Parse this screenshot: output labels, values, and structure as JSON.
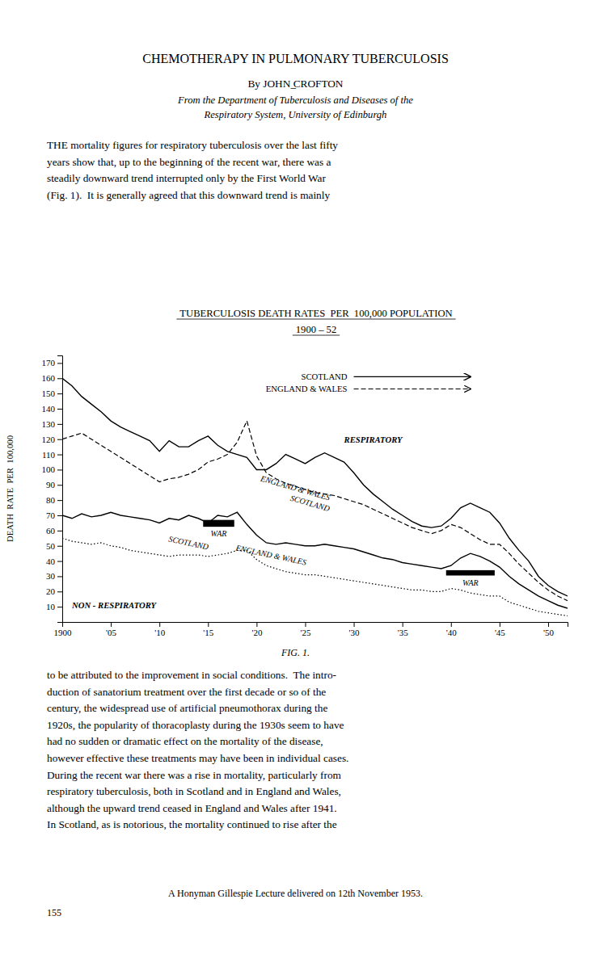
{
  "page_title": "CHEMOTHERAPY  IN  PULMONARY  TUBERCULOSIS",
  "author_line": "By JOHN ̲CROFTON",
  "affiliation": [
    "From the Department of Tuberculosis and Diseases of the",
    "Respiratory System, University of Edinburgh"
  ],
  "body_above": [
    "THE mortality figures for respiratory tuberculosis over the last fifty",
    "years show that, up to the beginning of the recent war, there was a",
    "steadily downward trend interrupted only by the First World War",
    "(Fig. 1).  It is generally agreed that this downward trend is mainly"
  ],
  "body_below": [
    "to be attributed to the improvement in social conditions.  The intro-",
    "duction of sanatorium treatment over the first decade or so of the",
    "century, the widespread use of artificial pneumothorax during the",
    "1920s, the popularity of thoracoplasty during the 1930s seem to have",
    "had no sudden or dramatic effect on the mortality of the disease,",
    "however effective these treatments may have been in individual cases.",
    "During the recent war there was a rise in mortality, particularly from",
    "respiratory tuberculosis, both in Scotland and in England and Wales,",
    "although the upward trend ceased in England and Wales after 1941.",
    "In Scotland, as is notorious, the mortality continued to rise after the"
  ],
  "footnotes": [
    "A Honyman Gillespie Lecture delivered on 12th November 1953.",
    "155"
  ],
  "chart_data": {
    "type": "line",
    "title": "TUBERCULOSIS DEATH RATES  PER  100,000 POPULATION",
    "subtitle": "1900 – 52",
    "y_label": "DEATH  RATE  PER  100,000",
    "caption": "FIG. 1.",
    "annotations": [
      "WAR",
      "WAR",
      "RESPIRATORY",
      "NON - RESPIRATORY"
    ],
    "x": [
      1900,
      1901,
      1902,
      1903,
      1904,
      1905,
      1906,
      1907,
      1908,
      1909,
      1910,
      1911,
      1912,
      1913,
      1914,
      1915,
      1916,
      1917,
      1918,
      1919,
      1920,
      1921,
      1922,
      1923,
      1924,
      1925,
      1926,
      1927,
      1928,
      1929,
      1930,
      1931,
      1932,
      1933,
      1934,
      1935,
      1936,
      1937,
      1938,
      1939,
      1940,
      1941,
      1942,
      1943,
      1944,
      1945,
      1946,
      1947,
      1948,
      1949,
      1950,
      1951,
      1952
    ],
    "series": [
      {
        "name": "SCOTLAND",
        "color": "#000000",
        "line_style": "solid",
        "values": [
          160,
          155,
          148,
          143,
          138,
          132,
          128,
          125,
          122,
          119,
          112,
          119,
          115,
          115,
          119,
          122,
          116,
          112,
          110,
          108,
          100,
          100,
          104,
          110,
          107,
          104,
          108,
          111,
          108,
          105,
          98,
          90,
          84,
          79,
          74,
          70,
          66,
          63,
          62,
          63,
          68,
          75,
          78,
          75,
          72,
          65,
          55,
          47,
          40,
          30,
          24,
          20,
          17
        ]
      },
      {
        "name": "ENGLAND & WALES",
        "color": "#000000",
        "line_style": "dashed",
        "values": [
          120,
          122,
          124,
          120,
          116,
          112,
          108,
          104,
          100,
          96,
          92,
          94,
          95,
          97,
          100,
          105,
          107,
          110,
          118,
          132,
          109,
          98,
          94,
          91,
          89,
          87,
          85,
          84,
          83,
          81,
          79,
          77,
          74,
          71,
          68,
          65,
          62,
          60,
          58,
          60,
          64,
          62,
          58,
          54,
          51,
          51,
          45,
          38,
          32,
          26,
          21,
          17,
          14
        ]
      },
      {
        "name": "SCOTLAND",
        "color": "#000000",
        "line_style": "solid",
        "values": [
          70,
          68,
          71,
          69,
          70,
          72,
          70,
          69,
          68,
          67,
          65,
          68,
          67,
          70,
          68,
          65,
          70,
          69,
          72,
          64,
          57,
          52,
          51,
          52,
          51,
          50,
          50,
          51,
          50,
          49,
          48,
          46,
          44,
          42,
          41,
          39,
          38,
          37,
          36,
          35,
          37,
          42,
          45,
          43,
          40,
          36,
          30,
          25,
          21,
          17,
          14,
          11,
          9
        ]
      },
      {
        "name": "ENGLAND & WALES",
        "color": "#000000",
        "line_style": "dotted",
        "values": [
          55,
          53,
          52,
          51,
          52,
          50,
          49,
          47,
          46,
          45,
          44,
          43,
          44,
          44,
          44,
          43,
          44,
          45,
          47,
          47,
          41,
          37,
          35,
          33,
          32,
          31,
          31,
          30,
          29,
          28,
          27,
          26,
          25,
          24,
          23,
          22,
          21,
          21,
          20,
          20,
          22,
          21,
          19,
          18,
          17,
          17,
          13,
          11,
          9,
          7,
          6,
          5,
          4
        ]
      }
    ],
    "xlim": [
      1900,
      1952
    ],
    "xticks": [
      1900,
      {
        "value": 1905,
        "label": "'05"
      },
      {
        "value": 1910,
        "label": "'10"
      },
      {
        "value": 1915,
        "label": "'15"
      },
      {
        "value": 1920,
        "label": "'20"
      },
      {
        "value": 1925,
        "label": "'25"
      },
      {
        "value": 1930,
        "label": "'30"
      },
      {
        "value": 1935,
        "label": "'35"
      },
      {
        "value": 1940,
        "label": "'40"
      },
      {
        "value": 1945,
        "label": "'45"
      },
      {
        "value": 1950,
        "label": "'50"
      }
    ],
    "ylim": [
      0,
      175
    ],
    "yticks": [
      10,
      20,
      30,
      40,
      50,
      60,
      70,
      80,
      90,
      100,
      110,
      120,
      130,
      140,
      150,
      160,
      170
    ],
    "grid": false
  }
}
